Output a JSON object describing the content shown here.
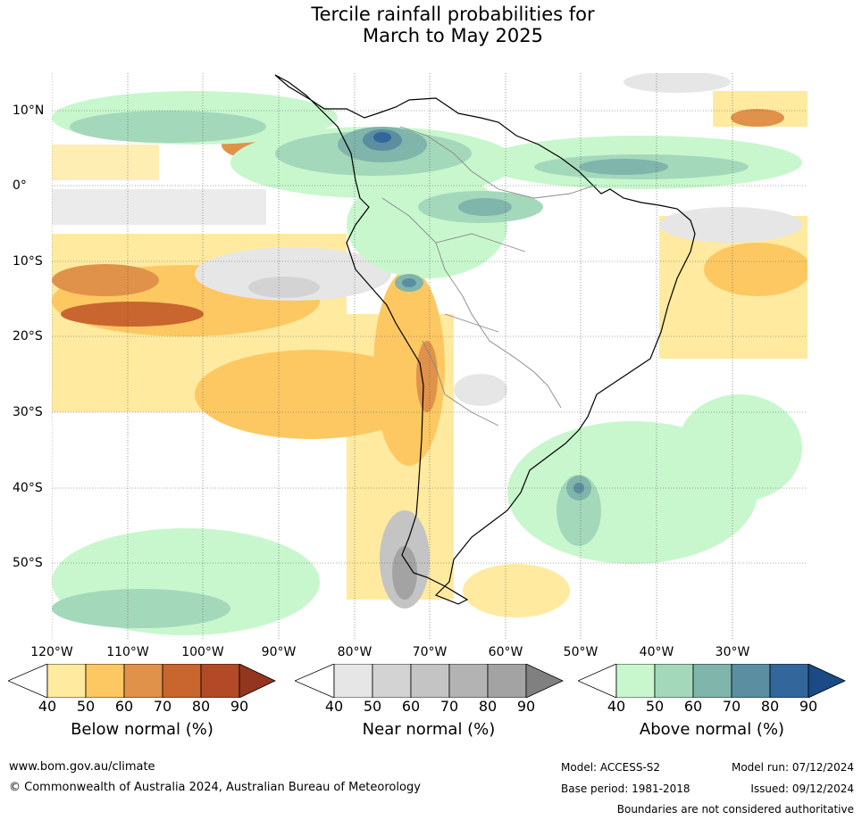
{
  "title": {
    "line1": "Tercile rainfall probabilities for",
    "line2": "March to May 2025"
  },
  "map": {
    "lon_labels": [
      "120°W",
      "110°W",
      "100°W",
      "90°W",
      "80°W",
      "70°W",
      "60°W",
      "50°W",
      "40°W",
      "30°W"
    ],
    "lat_labels": [
      "10°N",
      "0°",
      "10°S",
      "20°S",
      "30°S",
      "40°S",
      "50°S"
    ]
  },
  "colorbars": [
    {
      "label": "Below normal (%)",
      "ticks": [
        "40",
        "50",
        "60",
        "70",
        "80",
        "90"
      ],
      "colors": [
        "#ffeaa0",
        "#fdc862",
        "#e0924a",
        "#c9652f",
        "#b24a27",
        "#93351f"
      ]
    },
    {
      "label": "Near normal (%)",
      "ticks": [
        "40",
        "50",
        "60",
        "70",
        "80",
        "90"
      ],
      "colors": [
        "#e6e6e6",
        "#d3d3d3",
        "#c4c4c4",
        "#b3b3b3",
        "#a3a3a3",
        "#808080"
      ]
    },
    {
      "label": "Above normal (%)",
      "ticks": [
        "40",
        "50",
        "60",
        "70",
        "80",
        "90"
      ],
      "colors": [
        "#c8f7cd",
        "#a4d8bb",
        "#7fb5aa",
        "#5b8ea0",
        "#33669a",
        "#1a4b85"
      ]
    }
  ],
  "footer": {
    "website": "www.bom.gov.au/climate",
    "copyright": "© Commonwealth of Australia 2024, Australian Bureau of Meteorology",
    "model": "Model: ACCESS-S2",
    "model_run": "Model run: 07/12/2024",
    "base_period": "Base period: 1981-2018",
    "issued": "Issued: 09/12/2024",
    "disclaimer": "Boundaries are not considered authoritative"
  }
}
